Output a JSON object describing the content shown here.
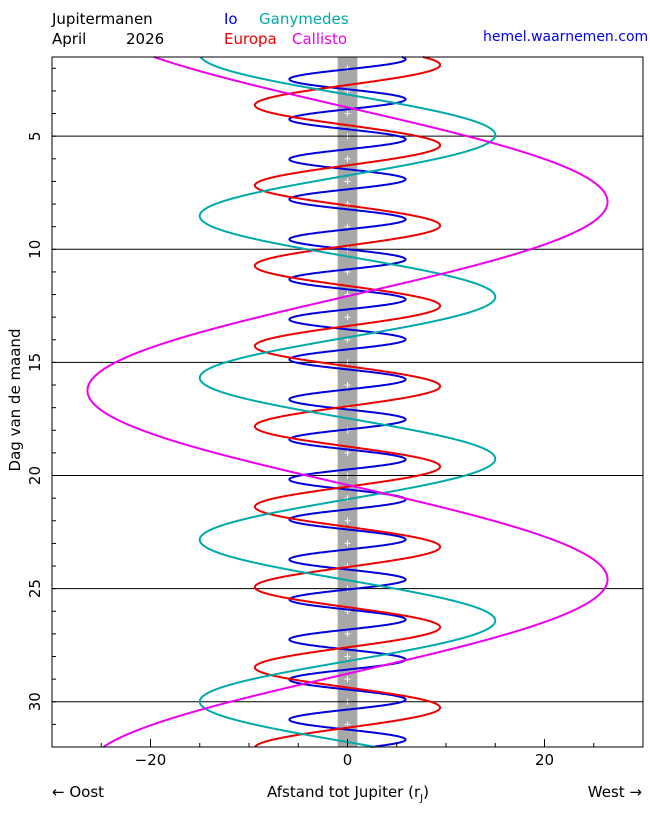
{
  "header": {
    "title": "Jupitermanen",
    "month": "April",
    "year": "2026",
    "website": "hemel.waarnemen.com"
  },
  "chart_data": {
    "type": "line",
    "xlabel_main": "Afstand tot Jupiter (r",
    "xlabel_sub": "J",
    "xlabel_end": ")",
    "xlabel_left": "← Oost",
    "xlabel_right": "West →",
    "ylabel": "Dag van de maand",
    "xlim": [
      -30,
      30
    ],
    "ylim": [
      32,
      1.5
    ],
    "xticks": [
      -20,
      0,
      20
    ],
    "yticks": [
      5,
      10,
      15,
      20,
      25,
      30
    ],
    "jupiter_half_width": 1,
    "series": [
      {
        "name": "Io",
        "color": "#0000dd",
        "amplitude": 5.9,
        "period_days": 1.769,
        "phase_day": 1.6
      },
      {
        "name": "Europa",
        "color": "#ee0000",
        "amplitude": 9.4,
        "period_days": 3.551,
        "phase_day": 1.85
      },
      {
        "name": "Ganymedes",
        "color": "#00aaaa",
        "amplitude": 15.0,
        "period_days": 7.155,
        "phase_day": 4.95
      },
      {
        "name": "Callisto",
        "color": "#ee00ee",
        "amplitude": 26.4,
        "period_days": 16.689,
        "phase_day": 7.9
      }
    ]
  }
}
